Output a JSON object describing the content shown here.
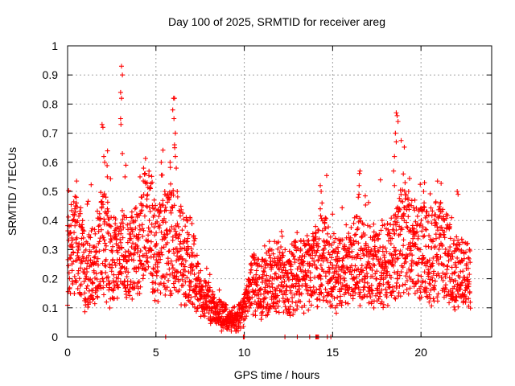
{
  "chart_data": {
    "type": "scatter",
    "title": "Day 100 of 2025, SRMTID for receiver areg",
    "xlabel": "GPS time / hours",
    "ylabel": "SRMTID / TECUs",
    "xlim": [
      0,
      24
    ],
    "ylim": [
      0,
      1
    ],
    "grid": true,
    "marker": "+",
    "series_color": "#ff0000",
    "x_ticks": [
      0,
      5,
      10,
      15,
      20
    ],
    "x_tick_labels": [
      "0",
      "5",
      "10",
      "15",
      "20"
    ],
    "y_ticks": [
      0,
      0.1,
      0.2,
      0.3,
      0.4,
      0.5,
      0.6,
      0.7,
      0.8,
      0.9,
      1
    ],
    "y_tick_labels": [
      "0",
      "0.1",
      "0.2",
      "0.3",
      "0.4",
      "0.5",
      "0.6",
      "0.7",
      "0.8",
      "0.9",
      "1"
    ],
    "trend_profile": [
      [
        0.0,
        0.28
      ],
      [
        0.5,
        0.33
      ],
      [
        1.0,
        0.22
      ],
      [
        1.5,
        0.24
      ],
      [
        2.0,
        0.35
      ],
      [
        2.5,
        0.25
      ],
      [
        3.0,
        0.3
      ],
      [
        3.5,
        0.25
      ],
      [
        4.0,
        0.3
      ],
      [
        4.5,
        0.4
      ],
      [
        5.0,
        0.3
      ],
      [
        5.5,
        0.32
      ],
      [
        6.0,
        0.36
      ],
      [
        6.5,
        0.28
      ],
      [
        7.0,
        0.26
      ],
      [
        7.5,
        0.14
      ],
      [
        8.0,
        0.12
      ],
      [
        8.5,
        0.08
      ],
      [
        9.0,
        0.07
      ],
      [
        9.5,
        0.05
      ],
      [
        10.0,
        0.1
      ],
      [
        10.5,
        0.18
      ],
      [
        11.0,
        0.16
      ],
      [
        11.5,
        0.2
      ],
      [
        12.0,
        0.21
      ],
      [
        12.5,
        0.19
      ],
      [
        13.0,
        0.22
      ],
      [
        13.5,
        0.22
      ],
      [
        14.0,
        0.24
      ],
      [
        14.5,
        0.28
      ],
      [
        15.0,
        0.22
      ],
      [
        15.5,
        0.22
      ],
      [
        16.0,
        0.24
      ],
      [
        16.5,
        0.27
      ],
      [
        17.0,
        0.25
      ],
      [
        17.5,
        0.24
      ],
      [
        18.0,
        0.24
      ],
      [
        18.5,
        0.28
      ],
      [
        19.0,
        0.35
      ],
      [
        19.5,
        0.32
      ],
      [
        20.0,
        0.3
      ],
      [
        20.5,
        0.28
      ],
      [
        21.0,
        0.3
      ],
      [
        21.5,
        0.27
      ],
      [
        22.0,
        0.22
      ],
      [
        22.5,
        0.2
      ],
      [
        22.8,
        0.2
      ]
    ],
    "spikes": [
      {
        "x": 1.95,
        "y": 0.73
      },
      {
        "x": 2.0,
        "y": 0.72
      },
      {
        "x": 2.05,
        "y": 0.62
      },
      {
        "x": 2.1,
        "y": 0.6
      },
      {
        "x": 2.25,
        "y": 0.55
      },
      {
        "x": 3.05,
        "y": 0.93
      },
      {
        "x": 3.1,
        "y": 0.9
      },
      {
        "x": 3.0,
        "y": 0.84
      },
      {
        "x": 3.05,
        "y": 0.82
      },
      {
        "x": 3.0,
        "y": 0.75
      },
      {
        "x": 3.02,
        "y": 0.73
      },
      {
        "x": 3.1,
        "y": 0.63
      },
      {
        "x": 3.3,
        "y": 0.59
      },
      {
        "x": 3.25,
        "y": 0.55
      },
      {
        "x": 4.1,
        "y": 0.55
      },
      {
        "x": 4.5,
        "y": 0.53
      },
      {
        "x": 5.3,
        "y": 0.6
      },
      {
        "x": 5.8,
        "y": 0.6
      },
      {
        "x": 6.0,
        "y": 0.82
      },
      {
        "x": 6.05,
        "y": 0.82
      },
      {
        "x": 5.95,
        "y": 0.78
      },
      {
        "x": 6.02,
        "y": 0.75
      },
      {
        "x": 6.1,
        "y": 0.7
      },
      {
        "x": 6.05,
        "y": 0.66
      },
      {
        "x": 6.1,
        "y": 0.62
      },
      {
        "x": 6.15,
        "y": 0.58
      },
      {
        "x": 14.3,
        "y": 0.52
      },
      {
        "x": 14.35,
        "y": 0.5
      },
      {
        "x": 14.4,
        "y": 0.46
      },
      {
        "x": 14.3,
        "y": 0.44
      },
      {
        "x": 16.55,
        "y": 0.57
      },
      {
        "x": 16.5,
        "y": 0.52
      },
      {
        "x": 16.45,
        "y": 0.48
      },
      {
        "x": 18.6,
        "y": 0.77
      },
      {
        "x": 18.65,
        "y": 0.76
      },
      {
        "x": 18.7,
        "y": 0.74
      },
      {
        "x": 18.55,
        "y": 0.7
      },
      {
        "x": 18.6,
        "y": 0.67
      },
      {
        "x": 18.5,
        "y": 0.62
      },
      {
        "x": 18.45,
        "y": 0.57
      },
      {
        "x": 18.5,
        "y": 0.52
      },
      {
        "x": 19.0,
        "y": 0.56
      },
      {
        "x": 19.1,
        "y": 0.53
      },
      {
        "x": 19.3,
        "y": 0.5
      },
      {
        "x": 20.2,
        "y": 0.53
      },
      {
        "x": 20.15,
        "y": 0.5
      },
      {
        "x": 21.1,
        "y": 0.43
      },
      {
        "x": 22.05,
        "y": 0.5
      },
      {
        "x": 22.1,
        "y": 0.49
      },
      {
        "x": 0.5,
        "y": 0.46
      },
      {
        "x": 0.45,
        "y": 0.45
      },
      {
        "x": 4.3,
        "y": 0.58
      },
      {
        "x": 4.9,
        "y": 0.47
      },
      {
        "x": 5.5,
        "y": 0.5
      }
    ],
    "zero_points": [
      {
        "x": 5.55,
        "y": 0.0
      },
      {
        "x": 9.95,
        "y": 0.0
      },
      {
        "x": 10.0,
        "y": 0.0
      },
      {
        "x": 12.3,
        "y": 0.0
      },
      {
        "x": 13.0,
        "y": 0.0
      },
      {
        "x": 13.7,
        "y": 0.0
      },
      {
        "x": 14.05,
        "y": 0.0
      },
      {
        "x": 14.1,
        "y": 0.0
      },
      {
        "x": 14.15,
        "y": 0.0
      },
      {
        "x": 14.2,
        "y": 0.0
      },
      {
        "x": 14.7,
        "y": 0.0
      },
      {
        "x": 14.9,
        "y": 0.0
      }
    ]
  }
}
